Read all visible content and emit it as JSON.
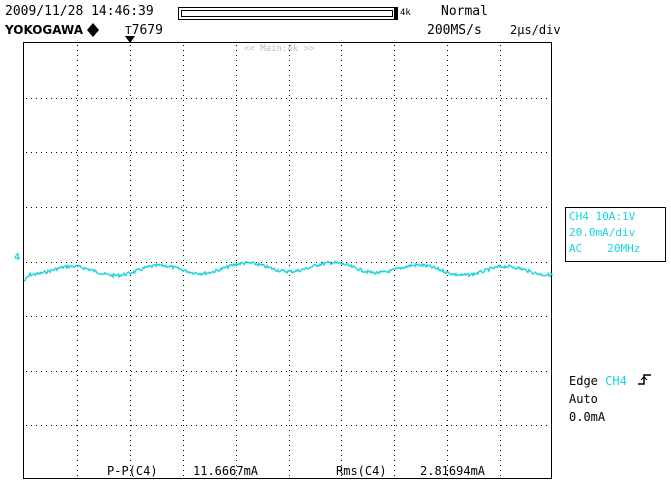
{
  "header": {
    "datetime": "2009/11/28 14:46:39",
    "brand": "YOKOGAWA",
    "brand_icon": "diamond-icon",
    "trigger_pos_label": "7679",
    "record_length": "4k",
    "trigger_mode": "Normal",
    "sample_rate": "200MS/s",
    "timebase": "2µs/div"
  },
  "screen": {
    "zoom_label": "<< Main:4k >>",
    "ground_marker": "4",
    "waveform_color": "#18d4dc"
  },
  "channel": {
    "line1": "CH4 10A:1V",
    "line2": "20.0mA/div",
    "line3_coupling": "AC",
    "line3_bw": "20MHz"
  },
  "trigger": {
    "type": "Edge",
    "source": "CH4",
    "slope_icon": "rising-edge-icon",
    "mode": "Auto",
    "level": "0.0mA"
  },
  "measurements": [
    {
      "label": "P-P(C4)",
      "value": "11.6667mA"
    },
    {
      "label": "Rms(C4)",
      "value": "2.81694mA"
    }
  ],
  "colors": {
    "waveform": "#18d4dc",
    "grid": "#000000",
    "background": "#ffffff"
  }
}
